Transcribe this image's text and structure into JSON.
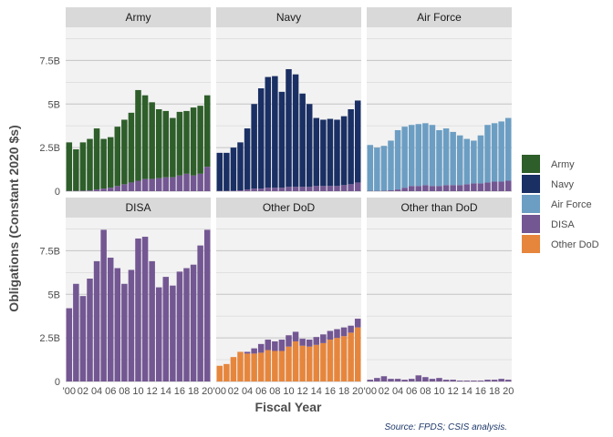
{
  "chart_data": {
    "type": "bar",
    "stacked": true,
    "ylabel": "Obligations (Constant 2020 $s)",
    "xlabel": "Fiscal Year",
    "caption": "Source: FPDS; CSIS analysis.",
    "x": [
      2000,
      2001,
      2002,
      2003,
      2004,
      2005,
      2006,
      2007,
      2008,
      2009,
      2010,
      2011,
      2012,
      2013,
      2014,
      2015,
      2016,
      2017,
      2018,
      2019,
      2020
    ],
    "x_tick_labels": [
      "'00",
      "02",
      "04",
      "06",
      "08",
      "10",
      "12",
      "14",
      "16",
      "18",
      "20"
    ],
    "x_tick_years": [
      2000,
      2002,
      2004,
      2006,
      2008,
      2010,
      2012,
      2014,
      2016,
      2018,
      2020
    ],
    "ylim": [
      0,
      9.4
    ],
    "y_ticks": [
      0,
      2.5,
      5,
      7.5
    ],
    "y_tick_labels": [
      "0",
      "2.5B",
      "5B",
      "7.5B"
    ],
    "grid": true,
    "legend_position": "right",
    "legend": [
      {
        "name": "Army",
        "color": "#2e5e2a"
      },
      {
        "name": "Navy",
        "color": "#1a2f63"
      },
      {
        "name": "Air Force",
        "color": "#6c9ec3"
      },
      {
        "name": "DISA",
        "color": "#735792"
      },
      {
        "name": "Other DoD",
        "color": "#e6863d"
      }
    ],
    "panels": [
      {
        "title": "Army",
        "series": [
          {
            "name": "DISA",
            "values": [
              0.02,
              0.02,
              0.03,
              0.04,
              0.1,
              0.15,
              0.2,
              0.3,
              0.4,
              0.5,
              0.6,
              0.7,
              0.7,
              0.75,
              0.8,
              0.8,
              0.9,
              1.0,
              0.9,
              1.0,
              1.4
            ]
          },
          {
            "name": "Army",
            "values": [
              2.78,
              2.38,
              2.77,
              2.96,
              3.5,
              2.85,
              2.9,
              3.4,
              3.7,
              4.0,
              5.2,
              4.8,
              4.4,
              3.95,
              3.8,
              3.4,
              3.65,
              3.6,
              3.9,
              3.9,
              4.1
            ]
          }
        ]
      },
      {
        "title": "Navy",
        "series": [
          {
            "name": "DISA",
            "values": [
              0.02,
              0.02,
              0.03,
              0.05,
              0.1,
              0.15,
              0.15,
              0.2,
              0.2,
              0.2,
              0.25,
              0.25,
              0.25,
              0.25,
              0.3,
              0.3,
              0.3,
              0.3,
              0.35,
              0.4,
              0.5
            ]
          },
          {
            "name": "Navy",
            "values": [
              2.18,
              2.18,
              2.47,
              2.75,
              3.5,
              4.85,
              5.75,
              6.35,
              6.4,
              5.5,
              6.75,
              6.45,
              5.35,
              4.75,
              3.9,
              3.8,
              3.85,
              3.8,
              3.95,
              4.3,
              4.7
            ]
          }
        ]
      },
      {
        "title": "Air Force",
        "series": [
          {
            "name": "DISA",
            "values": [
              0.02,
              0.02,
              0.03,
              0.05,
              0.1,
              0.2,
              0.3,
              0.3,
              0.35,
              0.3,
              0.3,
              0.35,
              0.35,
              0.35,
              0.4,
              0.45,
              0.45,
              0.5,
              0.55,
              0.55,
              0.6
            ]
          },
          {
            "name": "Air Force",
            "values": [
              2.63,
              2.48,
              2.57,
              2.85,
              3.4,
              3.5,
              3.5,
              3.55,
              3.55,
              3.5,
              3.2,
              3.25,
              3.05,
              2.85,
              2.6,
              2.45,
              2.75,
              3.3,
              3.35,
              3.45,
              3.6
            ]
          }
        ]
      },
      {
        "title": "DISA",
        "series": [
          {
            "name": "DISA",
            "values": [
              4.2,
              5.6,
              4.9,
              5.9,
              6.9,
              8.7,
              7.1,
              6.5,
              5.6,
              6.4,
              8.2,
              8.3,
              6.9,
              5.4,
              6.0,
              5.5,
              6.3,
              6.5,
              6.7,
              7.8,
              8.7
            ]
          }
        ]
      },
      {
        "title": "Other DoD",
        "series": [
          {
            "name": "Other DoD",
            "values": [
              0.9,
              1.0,
              1.4,
              1.7,
              1.6,
              1.6,
              1.65,
              1.8,
              1.75,
              1.75,
              2.0,
              2.3,
              2.05,
              2.0,
              2.1,
              2.2,
              2.4,
              2.5,
              2.6,
              2.8,
              3.1
            ]
          },
          {
            "name": "DISA",
            "values": [
              0.0,
              0.0,
              0.0,
              0.0,
              0.1,
              0.3,
              0.5,
              0.6,
              0.55,
              0.65,
              0.65,
              0.55,
              0.4,
              0.4,
              0.45,
              0.5,
              0.5,
              0.5,
              0.5,
              0.4,
              0.5
            ]
          }
        ]
      },
      {
        "title": "Other than DoD",
        "series": [
          {
            "name": "DISA",
            "values": [
              0.1,
              0.2,
              0.3,
              0.15,
              0.15,
              0.1,
              0.15,
              0.35,
              0.25,
              0.15,
              0.2,
              0.1,
              0.1,
              0.05,
              0.05,
              0.05,
              0.05,
              0.1,
              0.1,
              0.15,
              0.1
            ]
          }
        ]
      }
    ]
  }
}
